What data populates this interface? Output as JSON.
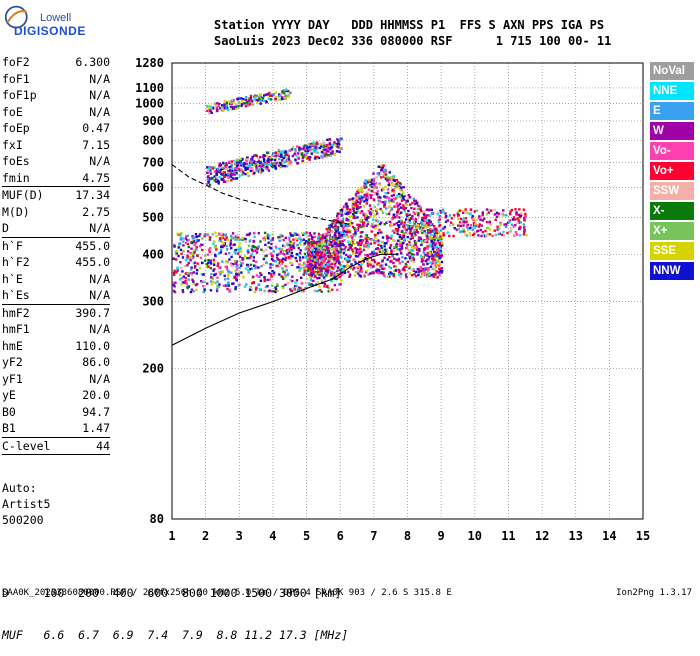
{
  "logo": {
    "line1": "Lowell",
    "line2": "DIGISONDE"
  },
  "header": {
    "line1": "Station YYYY DAY   DDD HHMMSS P1  FFS S AXN PPS IGA PS",
    "line2": "SaoLuis 2023 Dec02 336 080000 RSF      1 715 100 00- 11"
  },
  "params": [
    {
      "k": "foF2",
      "v": "6.300"
    },
    {
      "k": "foF1",
      "v": "N/A"
    },
    {
      "k": "foF1p",
      "v": "N/A"
    },
    {
      "k": "foE",
      "v": "N/A"
    },
    {
      "k": "foEp",
      "v": "0.47"
    },
    {
      "k": "fxI",
      "v": "7.15"
    },
    {
      "k": "foEs",
      "v": "N/A"
    },
    {
      "k": "fmin",
      "v": "4.75"
    },
    {
      "k": "MUF(D)",
      "v": "17.34",
      "sep": true
    },
    {
      "k": "M(D)",
      "v": "2.75"
    },
    {
      "k": "D",
      "v": "N/A"
    },
    {
      "k": "h`F",
      "v": "455.0",
      "sep": true
    },
    {
      "k": "h`F2",
      "v": "455.0"
    },
    {
      "k": "h`E",
      "v": "N/A"
    },
    {
      "k": "h`Es",
      "v": "N/A"
    },
    {
      "k": "hmF2",
      "v": "390.7",
      "sep": true
    },
    {
      "k": "hmF1",
      "v": "N/A"
    },
    {
      "k": "hmE",
      "v": "110.0"
    },
    {
      "k": "yF2",
      "v": "86.0"
    },
    {
      "k": "yF1",
      "v": "N/A"
    },
    {
      "k": "yE",
      "v": "20.0"
    },
    {
      "k": "B0",
      "v": "94.7"
    },
    {
      "k": "B1",
      "v": "1.47"
    },
    {
      "k": "C-level",
      "v": "44",
      "sep": true
    }
  ],
  "auto": {
    "line1": "Auto:",
    "line2": "Artist5",
    "line3": "500200"
  },
  "dmuf": {
    "line1": "D     100  200  400  600  800 1000 1500 3000 [km]",
    "line2": "MUF   6.6  6.7  6.9  7.4  7.9  8.8 11.2 17.3 [MHz]"
  },
  "footer": {
    "text": "SAA0K_2023336080000.RSF / 280fx256h 50 kHz 5.0 km / DPS-4 SAA0K 903 / 2.6 S 315.8 E",
    "version": "Ion2Png 1.3.17"
  },
  "legend": [
    {
      "label": "NoVal",
      "color": "#9e9e9e"
    },
    {
      "label": "NNE",
      "color": "#00e5ff"
    },
    {
      "label": "E",
      "color": "#3aa0f0"
    },
    {
      "label": "W",
      "color": "#a000a8"
    },
    {
      "label": "Vo-",
      "color": "#ff40b0"
    },
    {
      "label": "Vo+",
      "color": "#ff0033"
    },
    {
      "label": "SSW",
      "color": "#f4b0a8"
    },
    {
      "label": "X-",
      "color": "#0a7a0a"
    },
    {
      "label": "X+",
      "color": "#79c35c"
    },
    {
      "label": "SSE",
      "color": "#d6d400"
    },
    {
      "label": "NNW",
      "color": "#1010d0"
    }
  ],
  "chart_data": {
    "type": "scatter",
    "xlabel": "",
    "ylabel": "",
    "xlim": [
      1,
      15
    ],
    "ylim": [
      80,
      1280
    ],
    "x_ticks": [
      1,
      2,
      3,
      4,
      5,
      6,
      7,
      8,
      9,
      10,
      11,
      12,
      13,
      14,
      15
    ],
    "y_ticks": [
      80,
      200,
      300,
      400,
      500,
      600,
      700,
      800,
      900,
      1000,
      1100,
      1280
    ],
    "y_scale": "log",
    "grid": true,
    "clusters": [
      {
        "name": "F-trace",
        "fmin": 1.0,
        "fmax": 6.0,
        "hmin": 320,
        "hmax": 460
      },
      {
        "name": "main-body",
        "fmin": 5.0,
        "fmax": 9.0,
        "hmin": 350,
        "hmax": 700
      },
      {
        "name": "tail",
        "fmin": 8.5,
        "fmax": 11.5,
        "hmin": 450,
        "hmax": 530
      },
      {
        "name": "2nd-hop",
        "fmin": 2.0,
        "fmax": 6.0,
        "hmin": 630,
        "hmax": 860
      },
      {
        "name": "3rd-hop",
        "fmin": 2.0,
        "fmax": 4.5,
        "hmin": 960,
        "hmax": 1130
      }
    ],
    "profile_solid": [
      [
        1.0,
        230
      ],
      [
        2.0,
        255
      ],
      [
        3.0,
        280
      ],
      [
        4.0,
        300
      ],
      [
        5.0,
        325
      ],
      [
        5.8,
        345
      ],
      [
        6.3,
        370
      ],
      [
        6.8,
        390
      ],
      [
        7.2,
        400
      ],
      [
        7.7,
        400
      ]
    ],
    "profile_dashed": [
      [
        1.0,
        690
      ],
      [
        1.5,
        640
      ],
      [
        2.0,
        610
      ],
      [
        2.5,
        580
      ],
      [
        3.0,
        560
      ],
      [
        3.5,
        545
      ],
      [
        4.0,
        530
      ],
      [
        4.5,
        520
      ],
      [
        5.0,
        505
      ],
      [
        5.5,
        495
      ],
      [
        6.0,
        485
      ],
      [
        6.3,
        480
      ]
    ]
  }
}
